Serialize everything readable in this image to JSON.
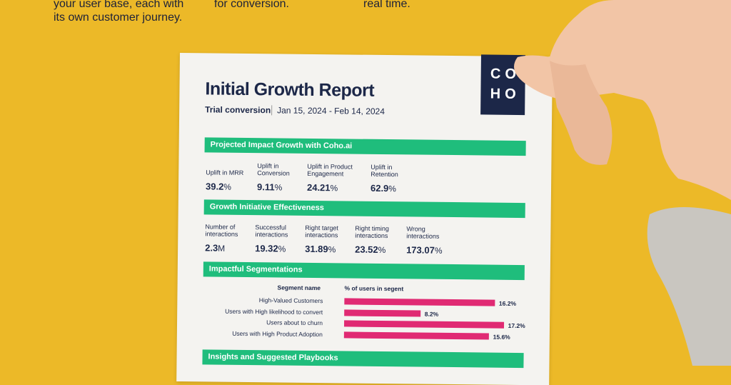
{
  "background_text": [
    {
      "lines": [
        "your user base, each with",
        "its own customer journey."
      ]
    },
    {
      "lines": [
        "for conversion."
      ]
    },
    {
      "lines": [
        "real time."
      ]
    }
  ],
  "report": {
    "title": "Initial Growth Report",
    "subtitle": "Trial conversion",
    "date_range": "Jan 15, 2024 - Feb 14, 2024",
    "logo": [
      "C",
      "O",
      "H",
      "O"
    ],
    "sections": [
      {
        "heading": "Projected Impact Growth with Coho.ai",
        "metrics": [
          {
            "label": [
              "Uplift in MRR"
            ],
            "value": "39.2",
            "unit": "%"
          },
          {
            "label": [
              "Uplift in",
              "Conversion"
            ],
            "value": "9.11",
            "unit": "%"
          },
          {
            "label": [
              "Uplift in Product",
              "Engagement"
            ],
            "value": "24.21",
            "unit": "%"
          },
          {
            "label": [
              "Uplift in",
              "Retention"
            ],
            "value": "62.9",
            "unit": "%"
          }
        ]
      },
      {
        "heading": "Growth Initiative Effectiveness",
        "metrics": [
          {
            "label": [
              "Number of",
              "interactions"
            ],
            "value": "2.3",
            "unit": "M"
          },
          {
            "label": [
              "Successful",
              "interactions"
            ],
            "value": "19.32",
            "unit": "%"
          },
          {
            "label": [
              "Right target",
              "interactions"
            ],
            "value": "31.89",
            "unit": "%"
          },
          {
            "label": [
              "Right timing",
              "interactions"
            ],
            "value": "23.52",
            "unit": "%"
          },
          {
            "label": [
              "Wrong",
              "interactions"
            ],
            "value": "173.07",
            "unit": "%"
          }
        ]
      },
      {
        "heading": "Impactful Segmentations"
      },
      {
        "heading": "Insights and Suggested Playbooks"
      }
    ]
  },
  "chart_data": {
    "type": "bar",
    "orientation": "horizontal",
    "category_header": "Segment name",
    "value_header": "% of users in segent",
    "categories": [
      "High-Valued Customers",
      "Users with High likelihood to convert",
      "Users about to churn",
      "Users with High Product Adoption"
    ],
    "values": [
      16.2,
      8.2,
      17.2,
      15.6
    ],
    "value_labels": [
      "16.2%",
      "8.2%",
      "17.2%",
      "15.6%"
    ],
    "color": "#e02a73"
  }
}
